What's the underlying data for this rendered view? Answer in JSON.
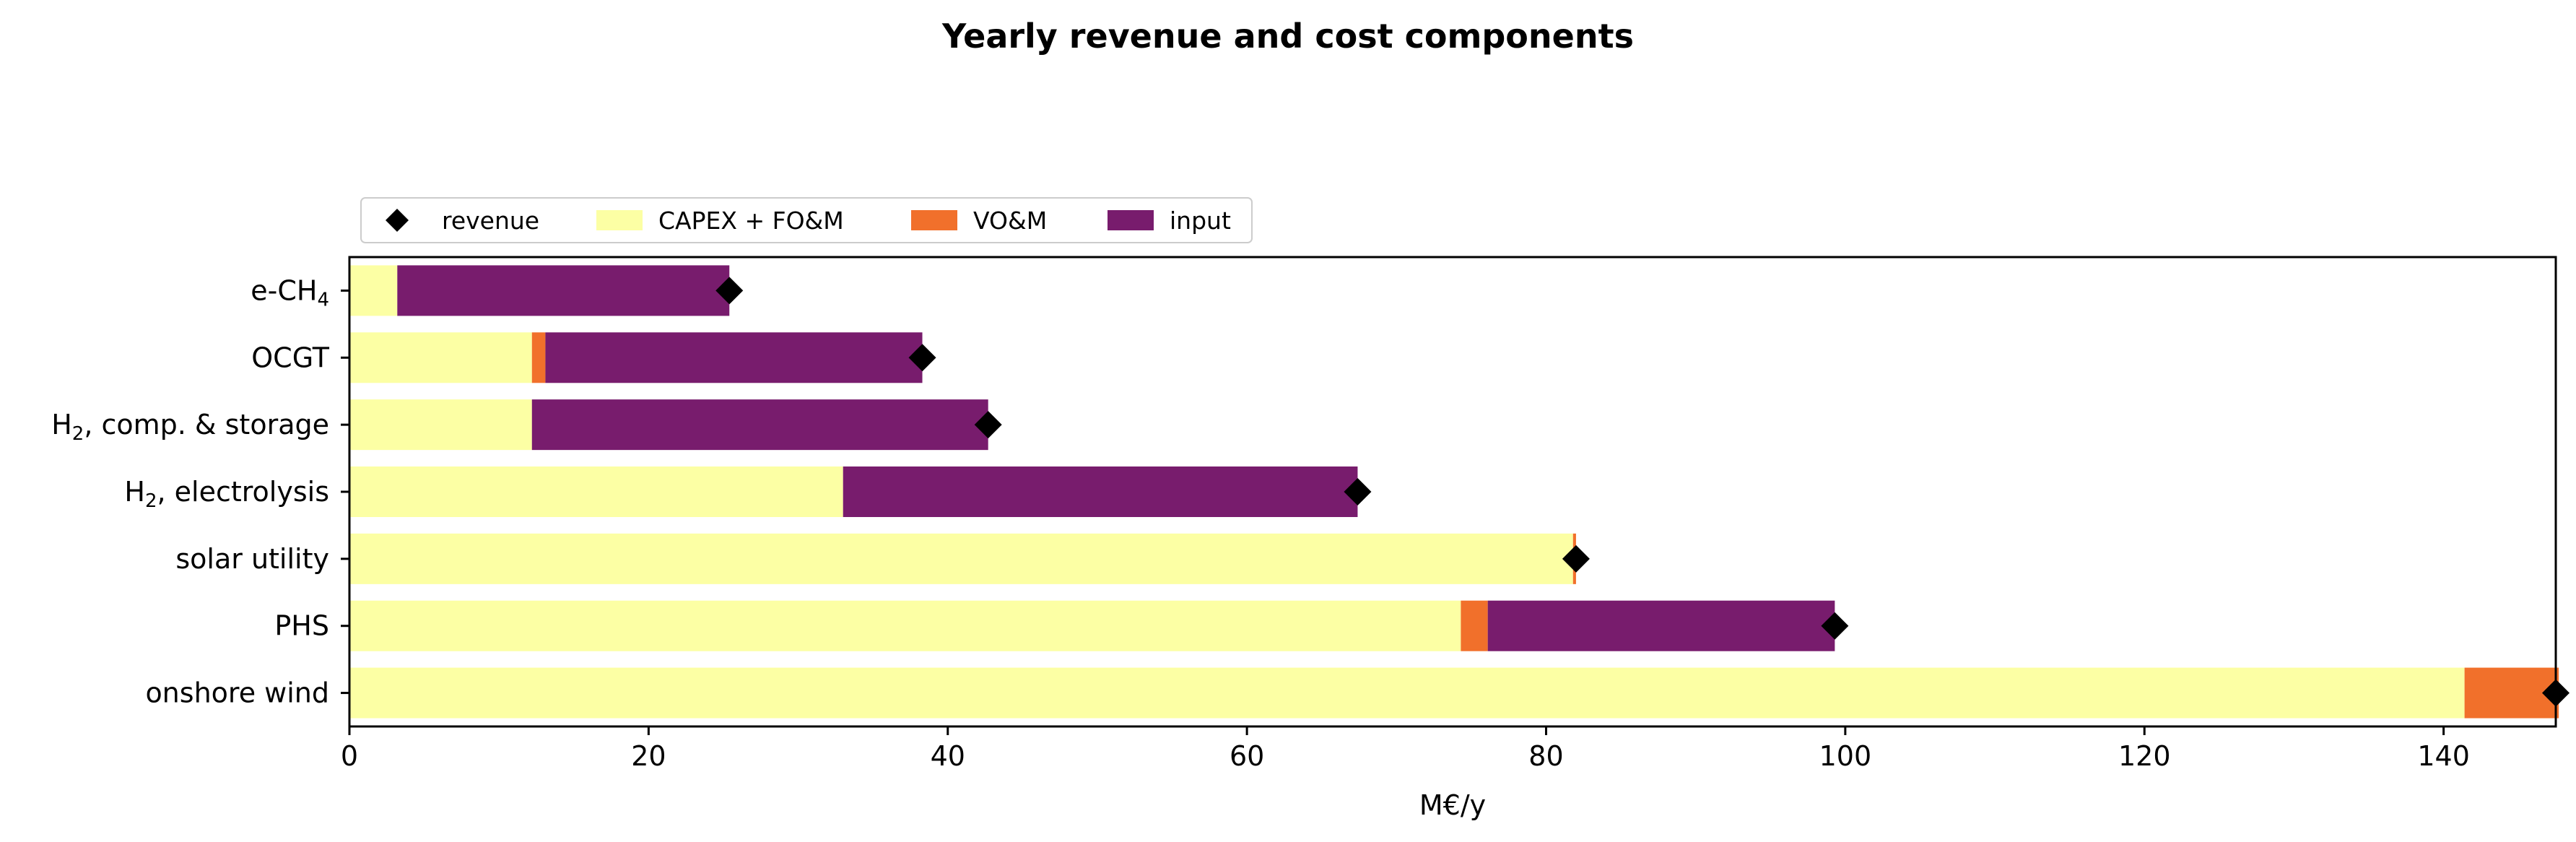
{
  "chart_data": {
    "type": "bar",
    "orientation": "horizontal",
    "stacked": true,
    "title": "Yearly revenue and cost components",
    "xlabel": "M€/y",
    "ylabel": "",
    "xlim": [
      0,
      147.5
    ],
    "x_ticks": [
      0,
      20,
      40,
      60,
      80,
      100,
      120,
      140
    ],
    "grid": false,
    "legend_position": "top-left, above plot",
    "categories": [
      {
        "main": "e-CH",
        "sub": "4",
        "rest": ""
      },
      {
        "main": "OCGT",
        "sub": "",
        "rest": ""
      },
      {
        "main": "H",
        "sub": "2",
        "rest": ", comp. & storage"
      },
      {
        "main": "H",
        "sub": "2",
        "rest": ", electrolysis"
      },
      {
        "main": "solar utility",
        "sub": "",
        "rest": ""
      },
      {
        "main": "PHS",
        "sub": "",
        "rest": ""
      },
      {
        "main": "onshore wind",
        "sub": "",
        "rest": ""
      }
    ],
    "series": [
      {
        "name": "CAPEX + FO&M",
        "color": "#fcffa4",
        "values": [
          3.2,
          12.2,
          12.2,
          33.0,
          81.8,
          74.3,
          141.4
        ]
      },
      {
        "name": "VO&M",
        "color": "#f1702b",
        "values": [
          0.0,
          0.9,
          0.0,
          0.0,
          0.2,
          1.8,
          6.3
        ]
      },
      {
        "name": "input",
        "color": "#781c6d",
        "values": [
          22.2,
          25.2,
          30.5,
          34.4,
          0.0,
          23.2,
          0.0
        ]
      }
    ],
    "markers": {
      "name": "revenue",
      "color": "#000000",
      "shape": "diamond",
      "values": [
        25.4,
        38.3,
        42.7,
        67.4,
        82.0,
        99.3,
        147.5
      ]
    }
  }
}
